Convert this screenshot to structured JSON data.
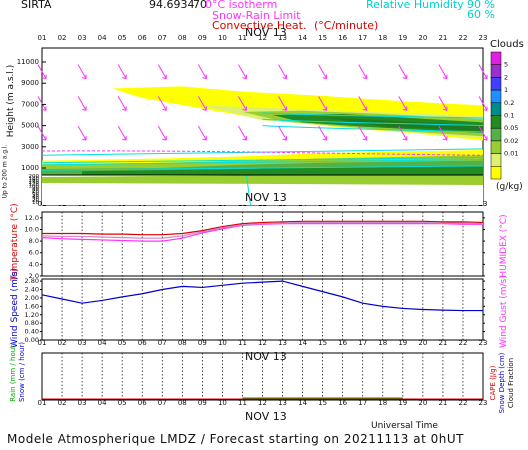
{
  "header": {
    "site": "SIRTA",
    "latitude": "94.6934",
    "longitude": "70",
    "legend_isotherm": "0°C isotherm",
    "legend_snow_rain": "Snow-Rain Limit",
    "legend_convective": "Convective Heat.",
    "legend_convective_unit": "(°C/minute)",
    "legend_rh": "Relative Humidity",
    "rh_90": "90 %",
    "rh_60": "60 %"
  },
  "footer": "Modele Atmospherique LMDZ / Forecast starting on 20211113 at 0hUT",
  "hours": [
    "01",
    "02",
    "03",
    "04",
    "05",
    "06",
    "07",
    "08",
    "09",
    "10",
    "11",
    "12",
    "13",
    "14",
    "15",
    "16",
    "17",
    "18",
    "19",
    "20",
    "21",
    "22",
    "23"
  ],
  "date_label": "NOV 13",
  "xaxis_label": "Universal Time",
  "colors": {
    "magenta": "#ff33ff",
    "cyan": "#00e0e0",
    "red": "#dd0000",
    "blue": "#0000cc",
    "green": "#00aa00"
  },
  "chart_data": [
    {
      "type": "heatmap",
      "panel": "clouds",
      "ylabel": "Height (m a.s.l.)",
      "ylabel_lower": "Up to 200 m a.g.l.",
      "yticks_upper": [
        "1000",
        "3000",
        "5000",
        "7000",
        "9000",
        "11000"
      ],
      "yticks_lower": [
        "10",
        "20",
        "30",
        "40",
        "50",
        "60",
        "70",
        "80",
        "90",
        "100",
        "120",
        "140",
        "160",
        "180",
        "200"
      ],
      "colorbar_title": "Clouds",
      "colorbar_unit": "(g/kg)",
      "colorbar_ticks": [
        "0.01",
        "0.02",
        "0.05",
        "0.1",
        "0.2",
        "1",
        "2",
        "5"
      ],
      "colorbar_colors": [
        "#ffff00",
        "#ddf070",
        "#9acd32",
        "#55b045",
        "#228b22",
        "#008b8b",
        "#1e90ff",
        "#4040ff",
        "#9932cc",
        "#e020e0"
      ]
    },
    {
      "type": "line",
      "panel": "temperature",
      "ylabel": "Temperature (°C)",
      "ylabel_right": "HUMIDEX (°C)",
      "yticks": [
        "2.0",
        "4.0",
        "6.0",
        "8.0",
        "10.0",
        "12.0"
      ],
      "ylim": [
        2,
        13
      ],
      "series": [
        {
          "color": "#dd0000",
          "values": [
            9.3,
            9.3,
            9.3,
            9.2,
            9.2,
            9.1,
            9.1,
            9.3,
            9.8,
            10.5,
            11.0,
            11.2,
            11.3,
            11.4,
            11.4,
            11.4,
            11.4,
            11.4,
            11.4,
            11.4,
            11.3,
            11.3,
            11.2
          ]
        },
        {
          "color": "#ff33ff",
          "values": [
            8.6,
            8.4,
            8.3,
            8.2,
            8.1,
            8.0,
            8.0,
            8.5,
            9.4,
            10.1,
            10.7,
            10.9,
            11.0,
            11.0,
            11.0,
            11.0,
            11.0,
            11.0,
            11.0,
            11.0,
            11.0,
            10.9,
            10.9
          ]
        },
        {
          "color": "#cc88cc",
          "values": [
            8.9,
            8.8,
            8.8,
            8.7,
            8.6,
            8.5,
            8.5,
            8.9,
            9.6,
            10.3,
            10.8,
            11.0,
            11.1,
            11.2,
            11.2,
            11.2,
            11.2,
            11.2,
            11.2,
            11.2,
            11.1,
            11.1,
            11.0
          ]
        }
      ]
    },
    {
      "type": "line",
      "panel": "wind",
      "ylabel": "Wind Speed (m/s)",
      "ylabel_right": "Wind Gust (m/s)",
      "yticks": [
        "0.00",
        "0.40",
        "0.80",
        "1.20",
        "1.60",
        "2.00",
        "2.40",
        "2.80"
      ],
      "ylim": [
        0,
        2.9
      ],
      "series": [
        {
          "color": "#0000cc",
          "values": [
            2.15,
            1.95,
            1.75,
            1.88,
            2.05,
            2.2,
            2.4,
            2.55,
            2.5,
            2.6,
            2.7,
            2.75,
            2.8,
            2.55,
            2.3,
            2.05,
            1.75,
            1.6,
            1.5,
            1.45,
            1.42,
            1.4,
            1.4
          ]
        }
      ]
    },
    {
      "type": "line",
      "panel": "precip",
      "ylabel_left": [
        "Rain (mm / hour)",
        "Snow (cm / hour)"
      ],
      "ylabel_right": [
        "CAPE (J/g)",
        "Snow Depth (cm)",
        "Cloud Fraction"
      ],
      "series": [
        {
          "color": "#dd0000",
          "values": [
            0,
            0,
            0,
            0,
            0,
            0,
            0,
            0,
            0,
            0,
            0,
            0,
            0,
            0,
            0,
            0,
            0,
            0,
            0,
            0,
            0,
            0,
            0
          ]
        }
      ]
    }
  ]
}
